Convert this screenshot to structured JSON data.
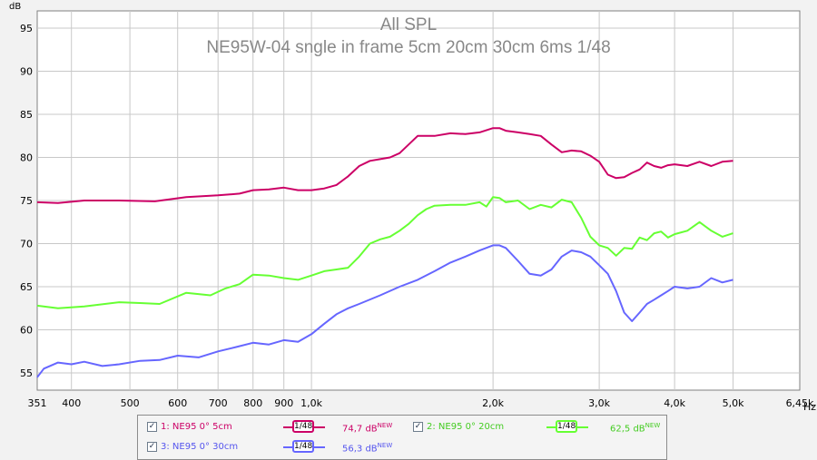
{
  "chart_data": {
    "type": "line",
    "title": "All SPL",
    "subtitle": "NE95W-04 sngle in frame 5cm 20cm 30cm 6ms 1/48",
    "ylabel": "dB",
    "xlabel": "Hz",
    "xscale": "log",
    "xlim": [
      351,
      6450
    ],
    "ylim": [
      53,
      97
    ],
    "x_ticks": [
      351,
      400,
      500,
      600,
      700,
      800,
      900,
      1000,
      2000,
      3000,
      4000,
      5000,
      6450
    ],
    "x_tick_labels": [
      "351",
      "400",
      "500",
      "600",
      "700",
      "800",
      "900",
      "1,0k",
      "2,0k",
      "3,0k",
      "4,0k",
      "5,0k",
      "6,45k"
    ],
    "y_ticks": [
      55,
      60,
      65,
      70,
      75,
      80,
      85,
      90,
      95
    ],
    "y_tick_labels": [
      "55",
      "60",
      "65",
      "70",
      "75",
      "80",
      "85",
      "90",
      "95"
    ],
    "grid": true,
    "series": [
      {
        "name": "1: NE95 0° 5cm",
        "color": "#cc0066",
        "smoothing": "1/48",
        "value_label": "74,7 dB",
        "x": [
          351,
          380,
          420,
          480,
          550,
          620,
          700,
          760,
          800,
          850,
          900,
          950,
          1000,
          1050,
          1100,
          1150,
          1200,
          1250,
          1300,
          1350,
          1400,
          1500,
          1600,
          1700,
          1800,
          1900,
          2000,
          2050,
          2100,
          2200,
          2300,
          2400,
          2500,
          2600,
          2700,
          2800,
          2900,
          3000,
          3100,
          3200,
          3300,
          3400,
          3500,
          3600,
          3700,
          3800,
          3900,
          4000,
          4200,
          4400,
          4600,
          4800,
          5000
        ],
        "y": [
          74.8,
          74.7,
          75.0,
          75.0,
          74.9,
          75.4,
          75.6,
          75.8,
          76.2,
          76.3,
          76.5,
          76.2,
          76.2,
          76.4,
          76.8,
          77.8,
          79.0,
          79.6,
          79.8,
          80.0,
          80.5,
          82.5,
          82.5,
          82.8,
          82.7,
          82.9,
          83.4,
          83.4,
          83.1,
          82.9,
          82.7,
          82.5,
          81.5,
          80.6,
          80.8,
          80.7,
          80.2,
          79.5,
          78.0,
          77.6,
          77.7,
          78.2,
          78.6,
          79.4,
          79.0,
          78.8,
          79.1,
          79.2,
          79.0,
          79.5,
          79.0,
          79.5,
          79.6
        ]
      },
      {
        "name": "2: NE95 0° 20cm",
        "color": "#66ff33",
        "smoothing": "1/48",
        "value_label": "62,5 dB",
        "x": [
          351,
          380,
          420,
          480,
          520,
          560,
          620,
          680,
          720,
          760,
          800,
          850,
          900,
          950,
          1000,
          1050,
          1100,
          1150,
          1200,
          1250,
          1300,
          1350,
          1400,
          1450,
          1500,
          1550,
          1600,
          1700,
          1800,
          1900,
          1950,
          2000,
          2050,
          2100,
          2200,
          2300,
          2400,
          2500,
          2600,
          2700,
          2800,
          2900,
          3000,
          3100,
          3200,
          3300,
          3400,
          3500,
          3600,
          3700,
          3800,
          3900,
          4000,
          4200,
          4400,
          4600,
          4800,
          5000
        ],
        "y": [
          62.8,
          62.5,
          62.7,
          63.2,
          63.1,
          63.0,
          64.3,
          64.0,
          64.8,
          65.3,
          66.4,
          66.3,
          66.0,
          65.8,
          66.3,
          66.8,
          67.0,
          67.2,
          68.5,
          70.0,
          70.5,
          70.8,
          71.5,
          72.3,
          73.3,
          74.0,
          74.4,
          74.5,
          74.5,
          74.8,
          74.3,
          75.4,
          75.3,
          74.8,
          75.0,
          74.0,
          74.5,
          74.2,
          75.1,
          74.8,
          73.0,
          70.8,
          69.8,
          69.5,
          68.6,
          69.5,
          69.4,
          70.7,
          70.4,
          71.2,
          71.4,
          70.7,
          71.1,
          71.5,
          72.5,
          71.5,
          70.8,
          71.2
        ]
      },
      {
        "name": "3: NE95 0° 30cm",
        "color": "#6666ff",
        "smoothing": "1/48",
        "value_label": "56,3 dB",
        "x": [
          351,
          360,
          380,
          400,
          420,
          450,
          480,
          520,
          560,
          600,
          650,
          700,
          750,
          800,
          850,
          900,
          950,
          1000,
          1050,
          1100,
          1150,
          1200,
          1300,
          1400,
          1500,
          1600,
          1700,
          1800,
          1900,
          2000,
          2050,
          2100,
          2200,
          2300,
          2400,
          2500,
          2600,
          2700,
          2800,
          2900,
          3000,
          3100,
          3200,
          3300,
          3400,
          3500,
          3600,
          3700,
          3800,
          3900,
          4000,
          4200,
          4400,
          4600,
          4800,
          5000
        ],
        "y": [
          54.5,
          55.5,
          56.2,
          56.0,
          56.3,
          55.8,
          56.0,
          56.4,
          56.5,
          57.0,
          56.8,
          57.5,
          58.0,
          58.5,
          58.3,
          58.8,
          58.6,
          59.5,
          60.7,
          61.8,
          62.5,
          63.0,
          64.0,
          65.0,
          65.8,
          66.8,
          67.8,
          68.5,
          69.2,
          69.8,
          69.8,
          69.5,
          68.0,
          66.5,
          66.3,
          67.0,
          68.5,
          69.2,
          69.0,
          68.5,
          67.5,
          66.5,
          64.5,
          62.0,
          61.0,
          62.0,
          63.0,
          63.5,
          64.0,
          64.5,
          65.0,
          64.8,
          65.0,
          66.0,
          65.5,
          65.8
        ]
      }
    ]
  }
}
